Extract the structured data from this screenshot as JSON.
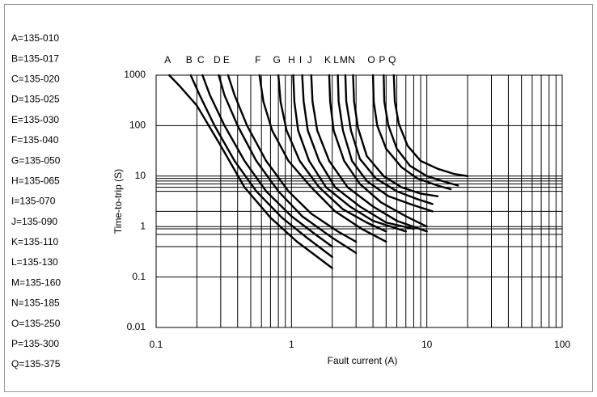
{
  "chart_data": {
    "type": "line",
    "x_label": "Fault current (A)",
    "y_label": "Time-to-trip (S)",
    "x_log": true,
    "y_log": true,
    "grid": true,
    "color": "#000000",
    "xlim": [
      0.1,
      100
    ],
    "ylim": [
      0.01,
      1000
    ],
    "xticks": [
      0.1,
      1,
      10,
      100
    ],
    "yticks": [
      0.01,
      0.1,
      1,
      10,
      100,
      1000
    ],
    "x_minor_grid": [
      0.2,
      0.3,
      0.4,
      0.5,
      0.6,
      0.7,
      0.8,
      0.9,
      2,
      3,
      4,
      5,
      6,
      7,
      8,
      9,
      20,
      30,
      40,
      50,
      60,
      70,
      80,
      90
    ],
    "y_minor_grid": [
      9,
      8,
      7,
      6,
      5,
      2,
      0.9,
      0.7,
      0.4
    ],
    "legend": [
      "A=135-010",
      "B=135-017",
      "C=135-020",
      "D=135-025",
      "E=135-030",
      "F=135-040",
      "G=135-050",
      "H=135-065",
      "I=135-070",
      "J=135-090",
      "K=135-110",
      "L=135-130",
      "M=135-160",
      "N=135-185",
      "O=135-250",
      "P=135-300",
      "Q=135-375"
    ],
    "series": [
      {
        "name": "A",
        "x": [
          0.125,
          0.15,
          0.2,
          0.3,
          0.45,
          0.7,
          1.1,
          2
        ],
        "values": [
          1000,
          600,
          250,
          40,
          6,
          1.5,
          0.5,
          0.15
        ]
      },
      {
        "name": "B",
        "x": [
          0.18,
          0.21,
          0.27,
          0.38,
          0.55,
          0.85,
          1.3,
          2
        ],
        "values": [
          1000,
          400,
          100,
          20,
          5,
          1.5,
          0.6,
          0.25
        ]
      },
      {
        "name": "C",
        "x": [
          0.22,
          0.25,
          0.32,
          0.45,
          0.65,
          1,
          1.5,
          2
        ],
        "values": [
          1000,
          400,
          100,
          20,
          5,
          1.6,
          0.7,
          0.4
        ]
      },
      {
        "name": "D",
        "x": [
          0.29,
          0.32,
          0.4,
          0.55,
          0.8,
          1.2,
          2,
          3
        ],
        "values": [
          1000,
          400,
          100,
          20,
          5,
          1.6,
          0.6,
          0.3
        ]
      },
      {
        "name": "E",
        "x": [
          0.34,
          0.38,
          0.47,
          0.65,
          0.95,
          1.4,
          2.2,
          3
        ],
        "values": [
          1000,
          400,
          100,
          20,
          5,
          1.8,
          0.8,
          0.5
        ]
      },
      {
        "name": "F",
        "x": [
          0.58,
          0.62,
          0.72,
          0.95,
          1.4,
          2.1,
          3.3,
          5
        ],
        "values": [
          1000,
          300,
          80,
          20,
          6,
          2,
          0.9,
          0.5
        ]
      },
      {
        "name": "G",
        "x": [
          0.8,
          0.83,
          0.92,
          1.15,
          1.6,
          2.4,
          3.6,
          5
        ],
        "values": [
          1000,
          300,
          80,
          20,
          6,
          2.2,
          1.2,
          0.8
        ]
      },
      {
        "name": "H",
        "x": [
          1.03,
          1.05,
          1.12,
          1.35,
          1.8,
          2.7,
          4,
          7
        ],
        "values": [
          1000,
          300,
          80,
          20,
          6,
          2.5,
          1.3,
          0.8
        ]
      },
      {
        "name": "I",
        "x": [
          1.2,
          1.23,
          1.32,
          1.6,
          2.1,
          3.2,
          5,
          8
        ],
        "values": [
          1000,
          300,
          80,
          20,
          6,
          2.5,
          1.2,
          0.9
        ]
      },
      {
        "name": "J",
        "x": [
          1.4,
          1.43,
          1.55,
          1.9,
          2.6,
          4,
          6,
          10
        ],
        "values": [
          1000,
          300,
          80,
          20,
          6,
          2.5,
          1.3,
          0.8
        ]
      },
      {
        "name": "K",
        "x": [
          1.9,
          1.93,
          2.05,
          2.45,
          3.2,
          4.6,
          7,
          10
        ],
        "values": [
          1000,
          300,
          80,
          20,
          7,
          3,
          1.6,
          1
        ]
      },
      {
        "name": "L",
        "x": [
          2.2,
          2.23,
          2.4,
          2.8,
          3.6,
          5.2,
          7.5,
          11
        ],
        "values": [
          1000,
          300,
          80,
          20,
          8,
          4,
          2.8,
          2
        ]
      },
      {
        "name": "M",
        "x": [
          2.5,
          2.54,
          2.75,
          3.2,
          4.2,
          6,
          8.5,
          11
        ],
        "values": [
          1000,
          300,
          80,
          22,
          9,
          5,
          3.5,
          2.8
        ]
      },
      {
        "name": "N",
        "x": [
          2.85,
          2.9,
          3.1,
          3.6,
          4.8,
          6.5,
          9,
          12
        ],
        "values": [
          1000,
          300,
          90,
          25,
          10,
          6,
          4.5,
          4
        ]
      },
      {
        "name": "O",
        "x": [
          4,
          4.05,
          4.3,
          5,
          6.5,
          8.5,
          12,
          15
        ],
        "values": [
          1000,
          300,
          100,
          35,
          15,
          9,
          6.5,
          5.5
        ]
      },
      {
        "name": "P",
        "x": [
          4.8,
          4.85,
          5.2,
          6,
          7.5,
          10,
          13,
          17
        ],
        "values": [
          1000,
          300,
          100,
          35,
          16,
          10,
          8,
          6.5
        ]
      },
      {
        "name": "Q",
        "x": [
          5.7,
          5.8,
          6.2,
          7.2,
          9,
          12,
          16,
          20
        ],
        "values": [
          1000,
          300,
          110,
          40,
          20,
          14,
          11,
          10
        ]
      }
    ]
  }
}
